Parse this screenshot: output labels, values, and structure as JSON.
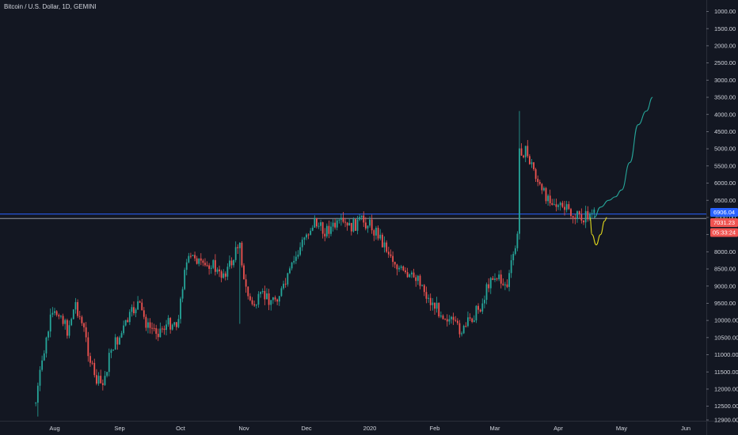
{
  "chart_title": "Bitcoin / U.S. Dollar, 1D, GEMINI",
  "colors": {
    "background": "#131722",
    "up": "#26a69a",
    "down": "#ef5350",
    "axis_text": "#d1d4dc",
    "grid": "#2a2e39",
    "hline_blue": "#2962ff",
    "hline_gray": "#9598a1",
    "projection_up": "#26a69a",
    "projection_down": "#e2d91c"
  },
  "price_tags": [
    {
      "text": "6906.04",
      "color": "#2962ff"
    },
    {
      "text": "7031.23",
      "color": "#ef5350"
    },
    {
      "text": "05:33:24",
      "color": "#ef5350"
    }
  ],
  "chart_data": {
    "type": "candlestick",
    "title": "Bitcoin / U.S. Dollar, 1D, GEMINI",
    "y_axis": {
      "inverted": true,
      "range": [
        1000,
        12900
      ],
      "ticks": [
        "1000.00",
        "1500.00",
        "2000.00",
        "2500.00",
        "3000.00",
        "3500.00",
        "4000.00",
        "4500.00",
        "5000.00",
        "5500.00",
        "6000.00",
        "6500.00",
        "7000.00",
        "7500.00",
        "8000.00",
        "8500.00",
        "9000.00",
        "9500.00",
        "10000.00",
        "10500.00",
        "11000.00",
        "11500.00",
        "12000.00",
        "12500.00",
        "12900.00"
      ]
    },
    "x_axis": {
      "labels": [
        "Aug",
        "Sep",
        "Oct",
        "Nov",
        "Dec",
        "2020",
        "Feb",
        "Mar",
        "Apr",
        "May",
        "Jun"
      ]
    },
    "horizontal_lines": [
      6900,
      7030
    ],
    "close_path": [
      [
        "Jul 23",
        12400
      ],
      [
        "Jul 26",
        11200
      ],
      [
        "Jul 30",
        10000
      ],
      [
        "Aug 3",
        9700
      ],
      [
        "Aug 7",
        10300
      ],
      [
        "Aug 11",
        9500
      ],
      [
        "Aug 15",
        10300
      ],
      [
        "Aug 20",
        11700
      ],
      [
        "Aug 24",
        11900
      ],
      [
        "Aug 28",
        10800
      ],
      [
        "Sep 1",
        10500
      ],
      [
        "Sep 5",
        10000
      ],
      [
        "Sep 10",
        9500
      ],
      [
        "Sep 15",
        10200
      ],
      [
        "Sep 20",
        10300
      ],
      [
        "Sep 25",
        10100
      ],
      [
        "Sep 30",
        10000
      ],
      [
        "Oct 3",
        8400
      ],
      [
        "Oct 8",
        8100
      ],
      [
        "Oct 12",
        8500
      ],
      [
        "Oct 16",
        8300
      ],
      [
        "Oct 20",
        8700
      ],
      [
        "Oct 24",
        8500
      ],
      [
        "Oct 27",
        8200
      ],
      [
        "Oct 30",
        7600
      ],
      [
        "Nov 1",
        8900
      ],
      [
        "Nov 5",
        9600
      ],
      [
        "Nov 10",
        9300
      ],
      [
        "Nov 15",
        9400
      ],
      [
        "Nov 20",
        9100
      ],
      [
        "Nov 25",
        8300
      ],
      [
        "Nov 30",
        7600
      ],
      [
        "Dec 5",
        7100
      ],
      [
        "Dec 9",
        7400
      ],
      [
        "Dec 13",
        7300
      ],
      [
        "Dec 18",
        7200
      ],
      [
        "Dec 22",
        7300
      ],
      [
        "Dec 28",
        7100
      ],
      [
        "Jan 1",
        7200
      ],
      [
        "Jan 5",
        7500
      ],
      [
        "Jan 9",
        7900
      ],
      [
        "Jan 14",
        8400
      ],
      [
        "Jan 19",
        8800
      ],
      [
        "Jan 24",
        8700
      ],
      [
        "Jan 29",
        9400
      ],
      [
        "Feb 3",
        9700
      ],
      [
        "Feb 7",
        9900
      ],
      [
        "Feb 11",
        10200
      ],
      [
        "Feb 15",
        10300
      ],
      [
        "Feb 19",
        9900
      ],
      [
        "Feb 24",
        9500
      ],
      [
        "Feb 28",
        8700
      ],
      [
        "Mar 3",
        8800
      ],
      [
        "Mar 7",
        9000
      ],
      [
        "Mar 10",
        8100
      ],
      [
        "Mar 12",
        7600
      ],
      [
        "Mar 13",
        5000
      ],
      [
        "Mar 16",
        5100
      ],
      [
        "Mar 20",
        5600
      ],
      [
        "Mar 24",
        6300
      ],
      [
        "Mar 28",
        6400
      ],
      [
        "Apr 1",
        6700
      ],
      [
        "Apr 5",
        6800
      ],
      [
        "Apr 9",
        7000
      ],
      [
        "Apr 13",
        7000
      ],
      [
        "Apr 16",
        6900
      ],
      [
        "Apr 18",
        6906
      ]
    ],
    "projection_up": [
      [
        "Apr 18",
        7000
      ],
      [
        "Apr 21",
        6700
      ],
      [
        "Apr 25",
        6500
      ],
      [
        "Apr 28",
        6400
      ],
      [
        "May 1",
        6200
      ],
      [
        "May 5",
        5400
      ],
      [
        "May 9",
        4300
      ],
      [
        "May 13",
        3900
      ],
      [
        "May 16",
        3500
      ]
    ],
    "projection_down": [
      [
        "Apr 16",
        7000
      ],
      [
        "Apr 17",
        7500
      ],
      [
        "Apr 19",
        7800
      ],
      [
        "Apr 21",
        7500
      ],
      [
        "Apr 23",
        7100
      ],
      [
        "Apr 24",
        7000
      ]
    ]
  }
}
